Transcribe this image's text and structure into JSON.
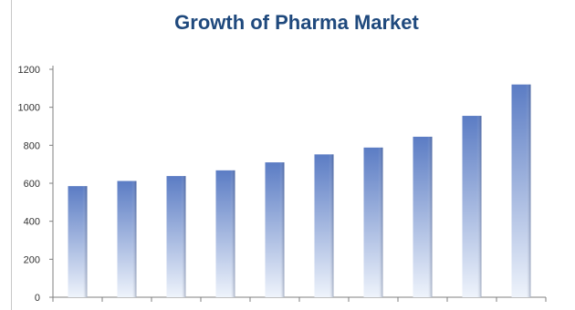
{
  "chart_data": {
    "type": "bar",
    "title": "Growth of Pharma Market",
    "xlabel": "",
    "ylabel": "",
    "categories": [
      "",
      "",
      "",
      "",
      "",
      "",
      "",
      "",
      "",
      ""
    ],
    "values": [
      585,
      612,
      638,
      668,
      710,
      752,
      788,
      845,
      955,
      1120
    ],
    "ylim": [
      0,
      1200
    ],
    "yticks": [
      0,
      200,
      400,
      600,
      800,
      1000,
      1200
    ],
    "grid": false,
    "legend": "none",
    "colors": {
      "bar_top": "#5b7cc4",
      "bar_bottom": "#eef3fb",
      "axis": "#7f7f7f",
      "title": "#1f497d"
    }
  }
}
